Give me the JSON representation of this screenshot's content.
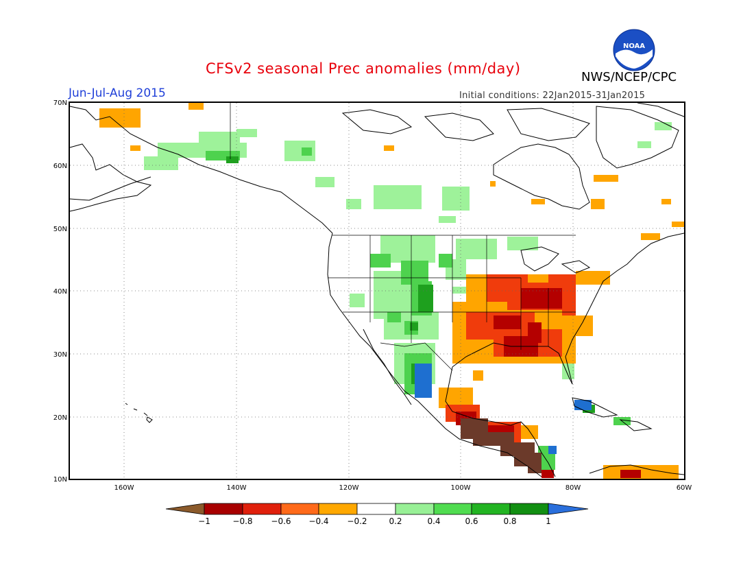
{
  "header": {
    "title": "CFSv2 seasonal Prec anomalies (mm/day)",
    "period": "Jun-Jul-Aug 2015",
    "initial_conditions": "Initial conditions: 22Jan2015-31Jan2015",
    "organization": "NWS/NCEP/CPC",
    "logo_text": "NOAA"
  },
  "map": {
    "lat_labels": [
      "70N",
      "60N",
      "50N",
      "40N",
      "30N",
      "20N",
      "10N"
    ],
    "lon_labels": [
      "160W",
      "140W",
      "120W",
      "100W",
      "80W",
      "60W"
    ]
  },
  "colorbar": {
    "labels": [
      "−1",
      "−0.8",
      "−0.6",
      "−0.4",
      "−0.2",
      "0.2",
      "0.4",
      "0.6",
      "0.8",
      "1"
    ],
    "colors": [
      "#8b5a2b",
      "#a80000",
      "#e0200c",
      "#ff6a1a",
      "#ffa800",
      "#ffffff",
      "#98f096",
      "#50dc50",
      "#22b422",
      "#128f12",
      "#2a6fdc"
    ]
  },
  "anomaly_colors": {
    "dry_extreme": "#6b3a2a",
    "dry_strong": "#b40000",
    "dry_moderate": "#f03c0c",
    "dry_weak": "#ffa500",
    "wet_weak": "#9ef29a",
    "wet_moderate": "#4ed24e",
    "wet_strong": "#1ea01e",
    "wet_extreme": "#1e6fd0"
  }
}
